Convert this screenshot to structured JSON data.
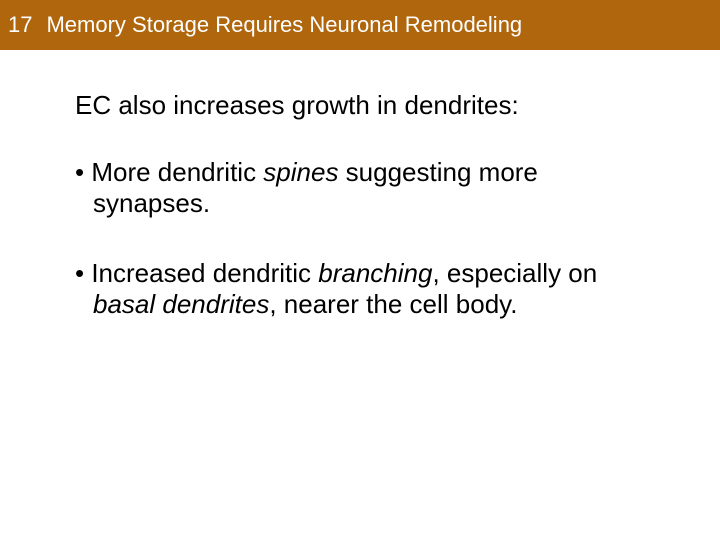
{
  "header": {
    "chapter_number": "17",
    "chapter_title": "Memory Storage Requires Neuronal Remodeling",
    "background_color": "#b0660c",
    "text_color": "#ffffff",
    "font_size": 22
  },
  "content": {
    "intro": "EC also increases growth in dendrites:",
    "bullets": [
      {
        "marker": "•",
        "prefix": " More dendritic ",
        "italic1": "spines",
        "mid": " suggesting more synapses.",
        "italic2": "",
        "suffix": ""
      },
      {
        "marker": "•",
        "prefix": " Increased dendritic ",
        "italic1": "branching",
        "mid": ", especially on ",
        "italic2": "basal dendrites",
        "suffix": ", nearer the cell body."
      }
    ],
    "font_size": 26,
    "text_color": "#000000",
    "background_color": "#ffffff"
  }
}
